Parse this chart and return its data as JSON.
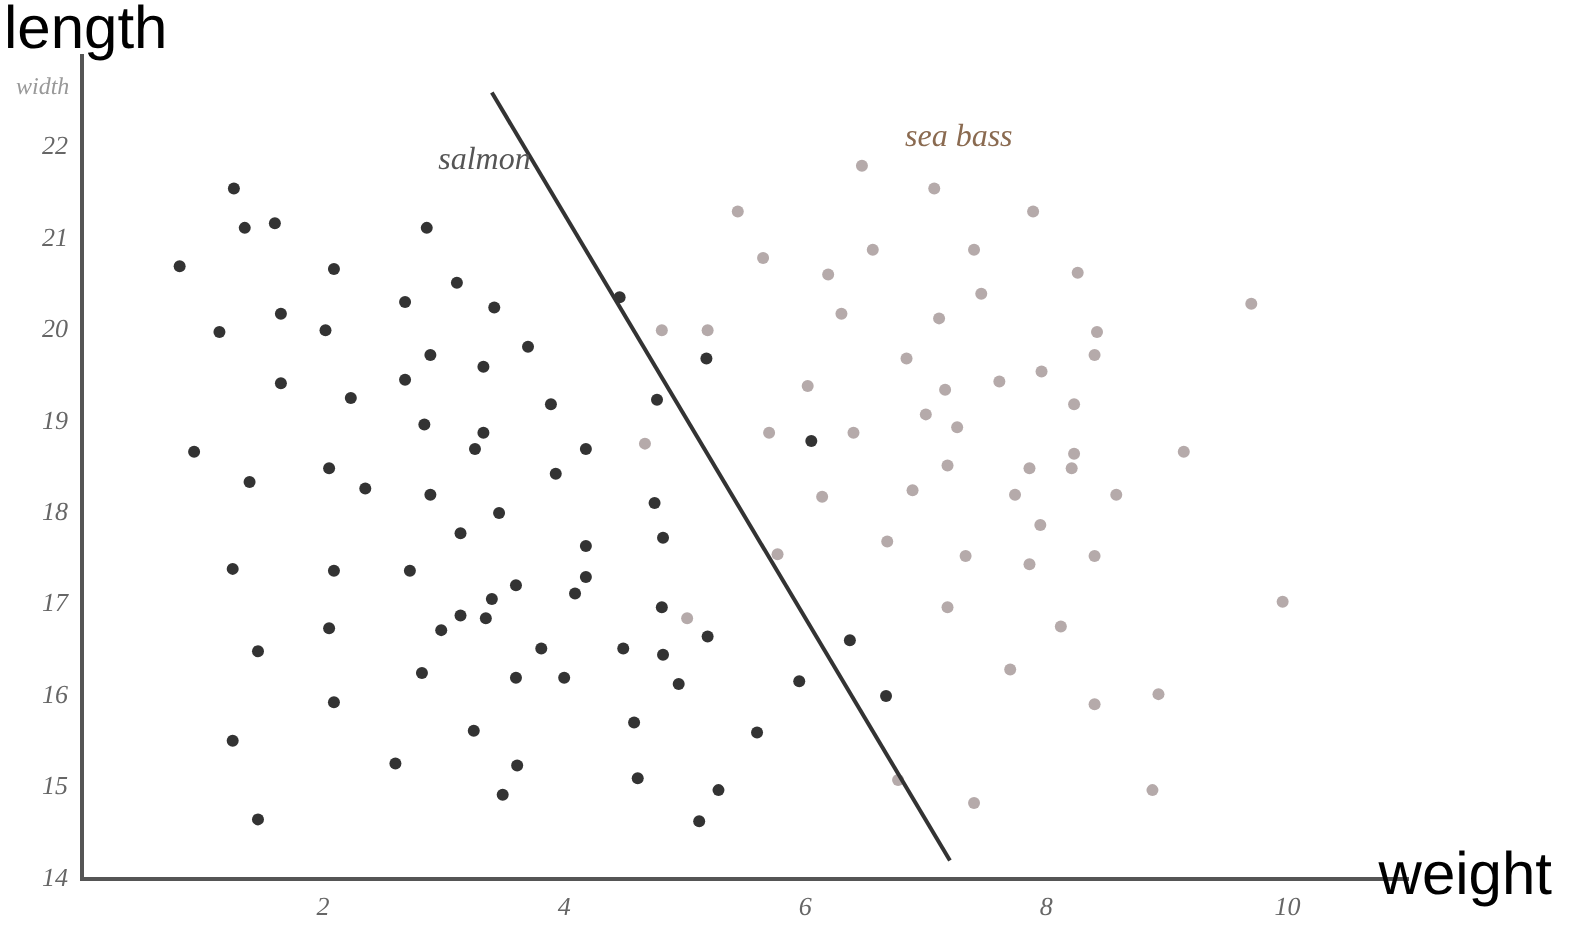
{
  "chart_data": {
    "type": "scatter",
    "xlabel": "weight",
    "ylabel": "length",
    "annotations": [
      "width"
    ],
    "xlim": [
      0,
      11
    ],
    "ylim": [
      14,
      23
    ],
    "xticks": [
      2,
      4,
      6,
      8,
      10
    ],
    "yticks": [
      14,
      15,
      16,
      17,
      18,
      19,
      20,
      21,
      22
    ],
    "grid": false,
    "legend": false,
    "marker": "circle",
    "series": [
      {
        "name": "salmon",
        "color": "#333333",
        "x": [
          1.26,
          1.35,
          1.6,
          0.81,
          2.09,
          2.86,
          3.11,
          3.42,
          2.68,
          1.14,
          1.65,
          2.02,
          2.89,
          3.33,
          3.7,
          1.65,
          2.23,
          2.68,
          2.84,
          3.33,
          3.26,
          0.93,
          2.05,
          1.39,
          2.35,
          2.89,
          3.46,
          3.14,
          1.25,
          2.09,
          2.72,
          3.6,
          3.4,
          3.14,
          3.35,
          2.98,
          2.05,
          1.46,
          2.82,
          3.6,
          2.09,
          1.25,
          3.25,
          2.6,
          3.61,
          3.49,
          1.46,
          3.93,
          4.75,
          4.82,
          4.18,
          4.18,
          4.09,
          4.81,
          5.19,
          3.81,
          4.49,
          4.82,
          4.0,
          4.95,
          5.95,
          6.37,
          6.67,
          4.58,
          5.6,
          4.61,
          5.28,
          5.12,
          4.46,
          5.18,
          3.89,
          4.77,
          4.18,
          6.05
        ],
        "values": [
          21.55,
          21.12,
          21.17,
          20.7,
          20.67,
          21.12,
          20.52,
          20.25,
          20.31,
          19.98,
          20.18,
          20.0,
          19.73,
          19.6,
          19.82,
          19.42,
          19.26,
          19.46,
          18.97,
          18.88,
          18.7,
          18.67,
          18.49,
          18.34,
          18.27,
          18.2,
          18.0,
          17.78,
          17.39,
          17.37,
          17.37,
          17.21,
          17.06,
          16.88,
          16.85,
          16.72,
          16.74,
          16.49,
          16.25,
          16.2,
          15.93,
          15.51,
          15.62,
          15.26,
          15.24,
          14.92,
          14.65,
          18.43,
          18.11,
          17.73,
          17.64,
          17.3,
          17.12,
          16.97,
          16.65,
          16.52,
          16.52,
          16.45,
          16.2,
          16.13,
          16.16,
          16.61,
          16.0,
          15.71,
          15.6,
          15.1,
          14.97,
          14.63,
          20.36,
          19.69,
          19.19,
          19.24,
          18.7,
          18.79
        ]
      },
      {
        "name": "sea bass",
        "color": "#b5aaaa",
        "x": [
          6.47,
          7.07,
          5.44,
          7.89,
          5.65,
          6.56,
          7.4,
          6.19,
          7.46,
          8.26,
          4.81,
          5.19,
          6.3,
          7.11,
          6.84,
          6.02,
          7.16,
          7.61,
          7.96,
          8.23,
          4.67,
          7.0,
          7.26,
          6.4,
          5.7,
          7.18,
          7.86,
          8.21,
          8.42,
          8.4,
          9.7,
          9.14,
          8.23,
          6.14,
          6.89,
          7.74,
          6.68,
          7.33,
          7.95,
          7.86,
          7.18,
          8.12,
          7.7,
          5.77,
          5.02,
          7.4,
          6.77,
          8.58,
          8.4,
          8.4,
          8.93,
          9.96,
          8.88
        ],
        "values": [
          21.8,
          21.55,
          21.3,
          21.3,
          20.79,
          20.88,
          20.88,
          20.61,
          20.4,
          20.63,
          20.0,
          20.0,
          20.18,
          20.13,
          19.69,
          19.39,
          19.35,
          19.44,
          19.55,
          19.19,
          18.76,
          19.08,
          18.94,
          18.88,
          18.88,
          18.52,
          18.49,
          18.49,
          19.98,
          19.73,
          20.29,
          18.67,
          18.65,
          18.18,
          18.25,
          18.2,
          17.69,
          17.53,
          17.87,
          17.44,
          16.97,
          16.76,
          16.29,
          17.55,
          16.85,
          14.83,
          15.08,
          18.2,
          17.53,
          15.91,
          16.02,
          17.03,
          14.97
        ]
      },
      {
        "type": "line",
        "color": "#333333",
        "x": [
          3.4,
          7.2
        ],
        "values": [
          22.6,
          14.2
        ],
        "marker": "none"
      }
    ]
  }
}
